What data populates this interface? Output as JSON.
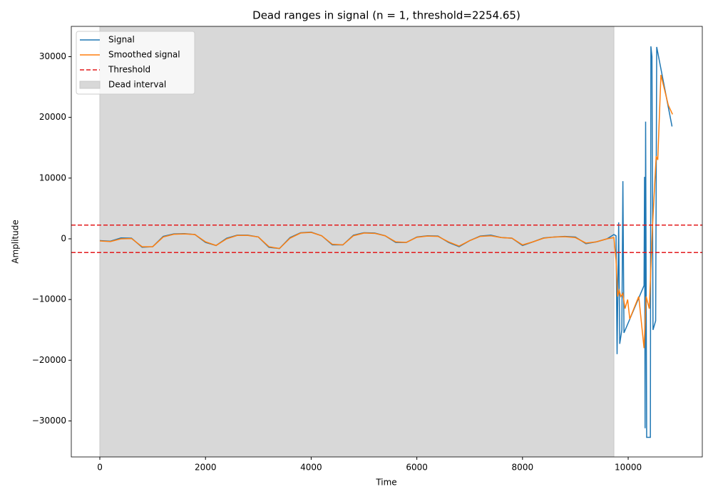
{
  "chart_data": {
    "type": "line",
    "title": "Dead ranges in signal (n = 1, threshold=2254.65)",
    "x_label": "Time",
    "y_label": "Amplitude",
    "xlim": [
      -540,
      11403
    ],
    "ylim": [
      -35930,
      34990
    ],
    "xticks": [
      0,
      2000,
      4000,
      6000,
      8000,
      10000
    ],
    "yticks": [
      {
        "value": -30000,
        "label": "−30000"
      },
      {
        "value": -20000,
        "label": "−20000"
      },
      {
        "value": -10000,
        "label": "−10000"
      },
      0,
      10000,
      20000,
      30000
    ],
    "series": [
      {
        "name": "Signal",
        "color": "#1f77b4",
        "x": [
          0,
          200,
          400,
          600,
          800,
          1000,
          1200,
          1400,
          1600,
          1800,
          2000,
          2200,
          2400,
          2600,
          2800,
          3000,
          3200,
          3400,
          3600,
          3800,
          4000,
          4200,
          4400,
          4600,
          4800,
          5000,
          5200,
          5400,
          5600,
          5800,
          6000,
          6200,
          6400,
          6600,
          6800,
          7000,
          7200,
          7400,
          7600,
          7800,
          8000,
          8200,
          8400,
          8600,
          8800,
          9000,
          9200,
          9400,
          9600,
          9730,
          9770,
          9790,
          9820,
          9840,
          9880,
          9900,
          9920,
          10300,
          10310,
          10320,
          10330,
          10350,
          10420,
          10430,
          10450,
          10470,
          10520,
          10540,
          10830
        ],
        "values": [
          -300,
          -400,
          150,
          100,
          -1400,
          -1300,
          400,
          800,
          850,
          700,
          -600,
          -1100,
          100,
          600,
          600,
          300,
          -1400,
          -1600,
          200,
          1000,
          1100,
          500,
          -1000,
          -1000,
          600,
          1000,
          950,
          500,
          -600,
          -600,
          300,
          500,
          450,
          -600,
          -1300,
          -300,
          450,
          600,
          200,
          100,
          -1100,
          -500,
          150,
          300,
          400,
          300,
          -800,
          -500,
          0,
          700,
          500,
          -19000,
          2700,
          -17300,
          -15000,
          9500,
          -15500,
          -7700,
          10200,
          -31200,
          19300,
          -32700,
          -32700,
          31700,
          30000,
          -15000,
          -13500,
          31600,
          18500
        ]
      },
      {
        "name": "Smoothed signal",
        "color": "#ff7f0e",
        "x": [
          0,
          200,
          400,
          600,
          800,
          1000,
          1200,
          1400,
          1600,
          1800,
          2000,
          2200,
          2400,
          2600,
          2800,
          3000,
          3200,
          3400,
          3600,
          3800,
          4000,
          4200,
          4400,
          4600,
          4800,
          5000,
          5200,
          5400,
          5600,
          5800,
          6000,
          6200,
          6400,
          6600,
          6800,
          7000,
          7200,
          7400,
          7600,
          7800,
          8000,
          8200,
          8400,
          8600,
          8800,
          9000,
          9200,
          9400,
          9600,
          9730,
          9770,
          9800,
          9830,
          9860,
          9900,
          9940,
          9990,
          10030,
          10200,
          10300,
          10340,
          10400,
          10460,
          10530,
          10560,
          10620,
          10760,
          10840
        ],
        "values": [
          -350,
          -450,
          0,
          50,
          -1300,
          -1300,
          300,
          750,
          800,
          700,
          -500,
          -1100,
          0,
          550,
          550,
          300,
          -1300,
          -1600,
          100,
          950,
          1050,
          500,
          -900,
          -1000,
          500,
          950,
          900,
          500,
          -500,
          -600,
          250,
          450,
          400,
          -500,
          -1200,
          -300,
          400,
          500,
          200,
          100,
          -1000,
          -500,
          100,
          300,
          350,
          200,
          -700,
          -500,
          0,
          200,
          -3500,
          -9500,
          -8500,
          -9500,
          -9000,
          -11500,
          -10000,
          -13200,
          -9500,
          -18000,
          -9500,
          -11500,
          2000,
          13600,
          13000,
          27000,
          22000,
          20500
        ]
      }
    ],
    "threshold_name": "Threshold",
    "threshold_color": "#e31a1c",
    "threshold_lines": [
      2254.65,
      -2254.65
    ],
    "dead_interval_name": "Dead interval",
    "dead_interval_color": "#d8d8d8",
    "dead_intervals": [
      [
        0,
        9730
      ]
    ],
    "legend": "upper left"
  }
}
